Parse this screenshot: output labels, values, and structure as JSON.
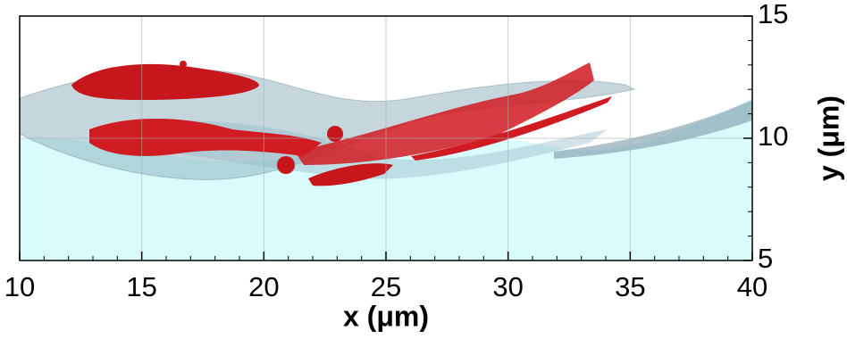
{
  "chart_data": {
    "type": "isosurface",
    "x_label": "x (μm)",
    "y_label": "y (μm)",
    "xlim": [
      10,
      40
    ],
    "ylim": [
      5,
      15
    ],
    "xticks": [
      10,
      15,
      20,
      25,
      30,
      35,
      40
    ],
    "yticks": [
      5,
      10,
      15
    ],
    "xminorticks": [
      11,
      12,
      13,
      14,
      16,
      17,
      18,
      19,
      21,
      22,
      23,
      24,
      26,
      27,
      28,
      29,
      31,
      32,
      33,
      34,
      36,
      37,
      38,
      39
    ],
    "yminorticks": [
      6,
      7,
      8,
      9,
      11,
      12,
      13,
      14
    ],
    "grid": true
  }
}
